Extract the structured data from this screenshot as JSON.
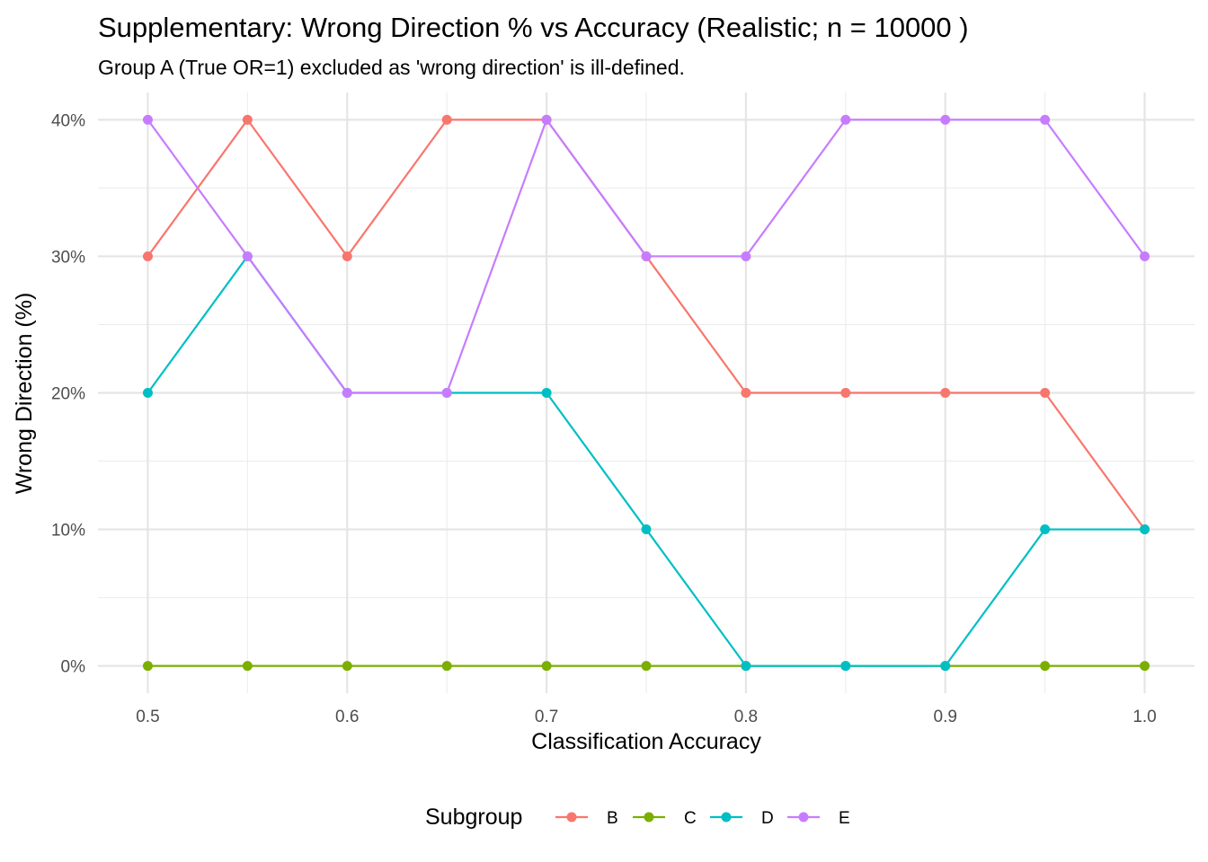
{
  "chart_data": {
    "type": "line",
    "title": "Supplementary: Wrong Direction % vs Accuracy (Realistic; n = 10000 )",
    "subtitle": "Group A (True OR=1) excluded as 'wrong direction' is ill-defined.",
    "xlabel": "Classification Accuracy",
    "ylabel": "Wrong Direction (%)",
    "x": [
      0.5,
      0.55,
      0.6,
      0.65,
      0.7,
      0.75,
      0.8,
      0.85,
      0.9,
      0.95,
      1.0
    ],
    "xlim": [
      0.475,
      1.025
    ],
    "ylim": [
      -2,
      42
    ],
    "x_ticks": [
      0.5,
      0.6,
      0.7,
      0.8,
      0.9,
      1.0
    ],
    "x_tick_labels": [
      "0.5",
      "0.6",
      "0.7",
      "0.8",
      "0.9",
      "1.0"
    ],
    "y_ticks": [
      0,
      10,
      20,
      30,
      40
    ],
    "y_tick_labels": [
      "0%",
      "10%",
      "20%",
      "30%",
      "40%"
    ],
    "grid": true,
    "legend_title": "Subgroup",
    "legend_position": "bottom",
    "series": [
      {
        "name": "B",
        "color": "#F8766D",
        "values": [
          30,
          40,
          30,
          40,
          40,
          30,
          20,
          20,
          20,
          20,
          10
        ]
      },
      {
        "name": "C",
        "color": "#7CAE00",
        "values": [
          0,
          0,
          0,
          0,
          0,
          0,
          0,
          0,
          0,
          0,
          0
        ]
      },
      {
        "name": "D",
        "color": "#00BFC4",
        "values": [
          20,
          30,
          20,
          20,
          20,
          10,
          0,
          0,
          0,
          10,
          10
        ]
      },
      {
        "name": "E",
        "color": "#C77CFF",
        "values": [
          40,
          30,
          20,
          20,
          40,
          30,
          30,
          40,
          40,
          40,
          30
        ]
      }
    ]
  }
}
